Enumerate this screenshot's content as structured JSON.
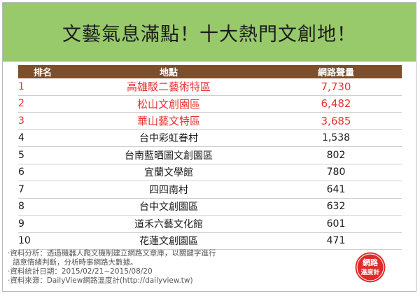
{
  "title": "文藝氣息滿點！十大熱門文創地！",
  "chart_data": {
    "type": "table",
    "title": "文藝氣息滿點！十大熱門文創地！",
    "columns": [
      "排名",
      "地點",
      "網路聲量"
    ],
    "rows": [
      {
        "rank": "1",
        "place": "高雄駁二藝術特區",
        "volume": "7,730"
      },
      {
        "rank": "2",
        "place": "松山文創園區",
        "volume": "6,482"
      },
      {
        "rank": "3",
        "place": "華山藝文特區",
        "volume": "3,685"
      },
      {
        "rank": "4",
        "place": "台中彩虹眷村",
        "volume": "1,538"
      },
      {
        "rank": "5",
        "place": "台南藍晒圖文創園區",
        "volume": "802"
      },
      {
        "rank": "6",
        "place": "宜蘭文學館",
        "volume": "780"
      },
      {
        "rank": "7",
        "place": "四四南村",
        "volume": "641"
      },
      {
        "rank": "8",
        "place": "台中文創園區",
        "volume": "632"
      },
      {
        "rank": "9",
        "place": "道禾六藝文化館",
        "volume": "601"
      },
      {
        "rank": "10",
        "place": "花蓮文創園區",
        "volume": "471"
      }
    ]
  },
  "notes": {
    "line1": "‧資料分析：透過機器人爬文機制建立網路文章庫，以關鍵字進行",
    "line2": "語意情緒判斷，分析時事網路大數據。",
    "line3": "‧資料統計日期：2015/02/21~2015/08/20",
    "line4": "‧資料來源：DailyView網路溫度計(http://dailyview.tw)"
  },
  "logo": {
    "text_top": "網路",
    "text_bottom": "溫度計",
    "color": "#e02b2b"
  },
  "colors": {
    "title_bg": "#98c96a",
    "header_bg": "#7d4e2c",
    "top3": "#e8312f",
    "rank": "#55a831"
  }
}
